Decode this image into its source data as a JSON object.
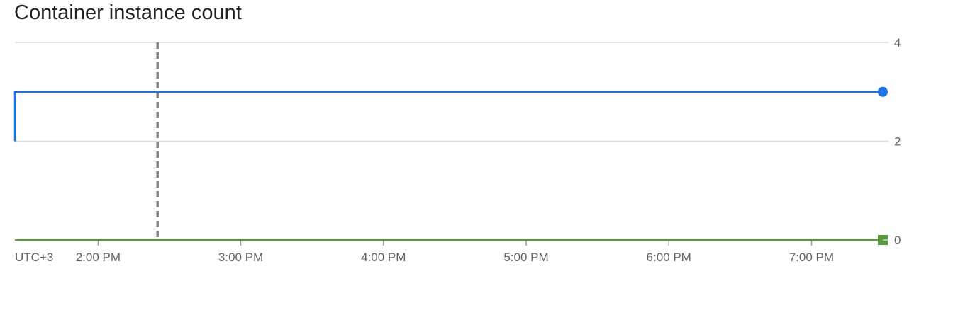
{
  "title": "Container instance count",
  "colors": {
    "active": "#1a73e8",
    "idle": "#5b9a3c",
    "grid": "#dadce0",
    "marker": "#80868b",
    "text": "#5f6368"
  },
  "chart_data": {
    "type": "line",
    "title": "Container instance count",
    "xlabel": "",
    "ylabel": "",
    "timezone_label": "UTC+3",
    "x_ticks": [
      "2:00 PM",
      "3:00 PM",
      "4:00 PM",
      "5:00 PM",
      "6:00 PM",
      "7:00 PM"
    ],
    "x_range": [
      "1:25 PM",
      "7:30 PM"
    ],
    "y_ticks": [
      0,
      2,
      4
    ],
    "ylim": [
      0,
      4
    ],
    "y_axis_side": "right",
    "grid": true,
    "marker_time": "2:25 PM",
    "series": [
      {
        "color": "#1a73e8",
        "end_marker": "circle",
        "x": [
          "1:25 PM",
          "1:25 PM",
          "7:30 PM"
        ],
        "y": [
          2,
          3,
          3
        ]
      },
      {
        "color": "#5b9a3c",
        "end_marker": "square",
        "x": [
          "1:25 PM",
          "7:30 PM"
        ],
        "y": [
          0,
          0
        ]
      }
    ]
  }
}
